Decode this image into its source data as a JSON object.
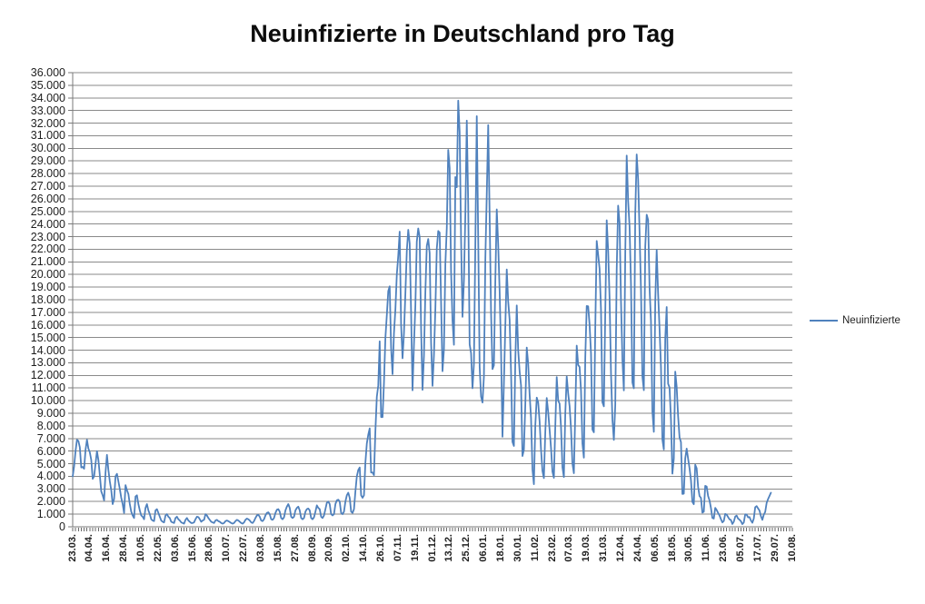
{
  "colors": {
    "series": "#4F81BD",
    "gridline": "#8a8a8a",
    "axis": "#7a7a7a",
    "tick": "#696969",
    "text": "#1f1f1f",
    "title": "#0d0d0d",
    "background": "#ffffff"
  },
  "legend": {
    "position": "right"
  },
  "chart_data": {
    "type": "line",
    "title": "Neuinfizierte in Deutschland pro Tag",
    "xlabel": "",
    "ylabel": "",
    "grid": true,
    "legend_position": "right",
    "y_axis": {
      "min": 0,
      "max": 36000,
      "step": 1000,
      "label_format": "german-thousands-dot"
    },
    "num_categories": 505,
    "x_tick_interval_points": 12,
    "x_tick_labels": [
      "23.03.",
      "04.04.",
      "16.04.",
      "28.04.",
      "10.05.",
      "22.05.",
      "03.06.",
      "15.06.",
      "28.06.",
      "10.07.",
      "22.07.",
      "03.08.",
      "15.08.",
      "27.08.",
      "08.09.",
      "20.09.",
      "02.10.",
      "14.10.",
      "26.10.",
      "07.11.",
      "19.11.",
      "01.12.",
      "13.12.",
      "25.12.",
      "06.01.",
      "18.01.",
      "30.01.",
      "11.02.",
      "23.02.",
      "07.03.",
      "19.03.",
      "31.03.",
      "12.04.",
      "24.04.",
      "06.05.",
      "18.05.",
      "30.05.",
      "11.06.",
      "23.06.",
      "05.07.",
      "17.07.",
      "29.07.",
      "10.08."
    ],
    "series": [
      {
        "name": "Neuinfizierte",
        "color": "#4F81BD",
        "values": [
          4000,
          4800,
          6000,
          6900,
          6800,
          6300,
          4700,
          4750,
          4600,
          6100,
          6900,
          6200,
          5900,
          5300,
          3800,
          4000,
          5000,
          6000,
          5300,
          4100,
          2800,
          2500,
          2100,
          4300,
          5700,
          4500,
          3600,
          2900,
          1800,
          2200,
          4000,
          4200,
          3600,
          3000,
          2300,
          1800,
          1100,
          3300,
          2900,
          2600,
          1800,
          1200,
          900,
          700,
          2400,
          2500,
          1800,
          1300,
          900,
          800,
          600,
          1500,
          1800,
          1300,
          1000,
          600,
          500,
          450,
          1300,
          1400,
          1100,
          800,
          500,
          400,
          350,
          900,
          1000,
          800,
          700,
          400,
          350,
          300,
          700,
          800,
          600,
          500,
          350,
          300,
          250,
          550,
          700,
          500,
          400,
          300,
          300,
          350,
          600,
          800,
          770,
          600,
          400,
          500,
          550,
          1000,
          900,
          700,
          550,
          400,
          350,
          300,
          500,
          550,
          450,
          400,
          300,
          250,
          300,
          450,
          500,
          450,
          380,
          300,
          250,
          300,
          450,
          550,
          500,
          400,
          300,
          250,
          350,
          550,
          650,
          600,
          500,
          350,
          300,
          450,
          700,
          900,
          950,
          800,
          500,
          450,
          600,
          900,
          1100,
          1150,
          1000,
          600,
          550,
          700,
          1100,
          1350,
          1400,
          1200,
          700,
          600,
          750,
          1300,
          1600,
          1800,
          1500,
          800,
          700,
          800,
          1300,
          1500,
          1600,
          1300,
          700,
          600,
          700,
          1200,
          1400,
          1450,
          1300,
          700,
          600,
          750,
          1200,
          1700,
          1500,
          1400,
          800,
          700,
          900,
          1400,
          1900,
          2000,
          1800,
          1000,
          900,
          1000,
          1800,
          2100,
          2150,
          2000,
          1100,
          1000,
          1200,
          2000,
          2500,
          2700,
          2300,
          1200,
          1100,
          1400,
          2800,
          4000,
          4500,
          4700,
          2500,
          2300,
          2500,
          5100,
          6600,
          7300,
          7800,
          4300,
          4300,
          4100,
          7600,
          10300,
          11200,
          14700,
          8700,
          8700,
          11400,
          14960,
          16770,
          18680,
          19060,
          14180,
          12100,
          15350,
          17210,
          19990,
          21500,
          23400,
          16020,
          13360,
          15330,
          18490,
          21870,
          23540,
          22460,
          16950,
          10820,
          14420,
          17560,
          22610,
          23650,
          22960,
          15740,
          10860,
          13550,
          18630,
          22270,
          22810,
          21700,
          14610,
          11170,
          13600,
          17270,
          22050,
          23450,
          23320,
          17770,
          12330,
          14050,
          20820,
          23680,
          29880,
          28440,
          20200,
          16360,
          14430,
          27730,
          26920,
          33780,
          31300,
          22770,
          16640,
          19530,
          24740,
          32200,
          25530,
          14460,
          13760,
          10980,
          12890,
          22460,
          32550,
          22920,
          12690,
          10320,
          9850,
          11900,
          21240,
          26390,
          31850,
          24690,
          16950,
          12500,
          12800,
          19600,
          25160,
          22370,
          18680,
          13880,
          7140,
          11370,
          15970,
          20400,
          17860,
          16420,
          12260,
          6730,
          6410,
          13200,
          17550,
          14020,
          12320,
          11190,
          5610,
          6110,
          9710,
          14210,
          12910,
          10490,
          8620,
          4540,
          3380,
          8070,
          10240,
          9860,
          8350,
          6110,
          4430,
          3860,
          7560,
          10210,
          9110,
          7680,
          6240,
          4370,
          3880,
          8010,
          11870,
          10000,
          9760,
          7890,
          4730,
          3940,
          9020,
          11910,
          10580,
          9560,
          7750,
          5010,
          4250,
          9150,
          14360,
          12830,
          12670,
          10790,
          6600,
          5480,
          13440,
          17500,
          17480,
          16030,
          13730,
          7710,
          7490,
          15810,
          22660,
          21570,
          20470,
          17180,
          9870,
          9550,
          17050,
          24300,
          21890,
          18130,
          12200,
          8500,
          6890,
          9680,
          20410,
          25460,
          24100,
          17860,
          13250,
          10810,
          21690,
          29430,
          25830,
          23800,
          19190,
          11440,
          10980,
          24880,
          29520,
          27540,
          23390,
          18770,
          11910,
          10830,
          22230,
          24740,
          24330,
          18940,
          16290,
          9160,
          7530,
          17860,
          21950,
          18490,
          15690,
          12660,
          6920,
          6130,
          14910,
          17420,
          11340,
          11040,
          8500,
          4210,
          5410,
          12300,
          11100,
          8770,
          7080,
          6710,
          2600,
          2630,
          5430,
          6200,
          5400,
          4640,
          3700,
          1980,
          1790,
          4920,
          4640,
          3170,
          2440,
          2290,
          1120,
          1200,
          3250,
          3190,
          2440,
          2090,
          1490,
          700,
          650,
          1500,
          1330,
          1100,
          900,
          600,
          350,
          460,
          1020,
          970,
          770,
          590,
          540,
          220,
          400,
          810,
          890,
          650,
          560,
          440,
          210,
          340,
          990,
          970,
          750,
          770,
          500,
          320,
          650,
          1550,
          1640,
          1460,
          1290,
          840,
          550,
          960,
          1180,
          1890,
          2200,
          2450,
          2700
        ]
      }
    ]
  }
}
